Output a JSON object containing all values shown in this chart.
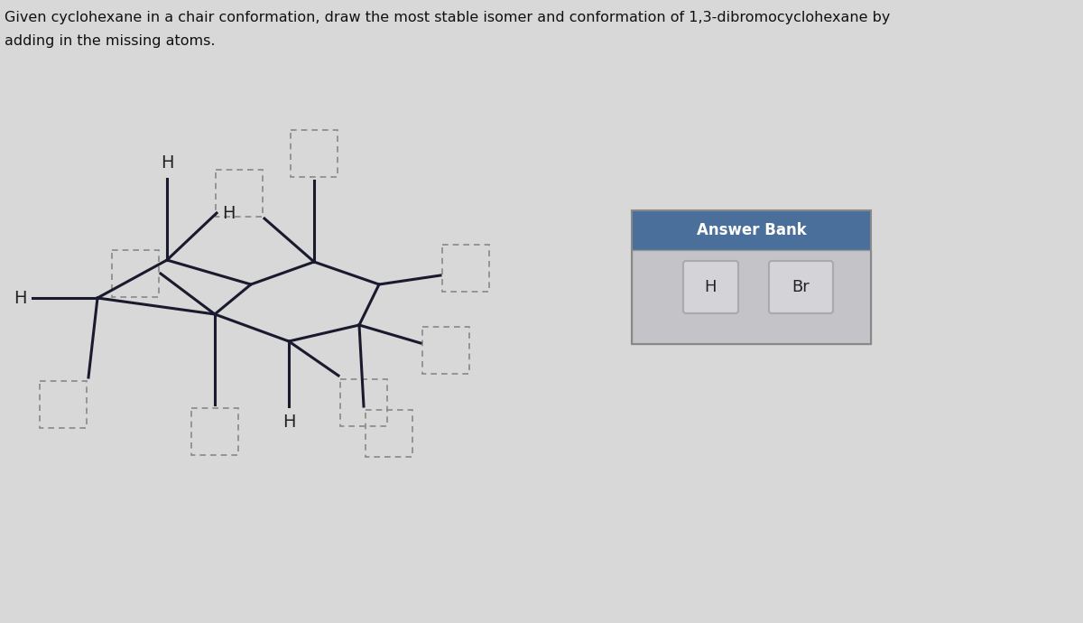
{
  "title_text": "Given cyclohexane in a chair conformation, draw the most stable isomer and conformation of 1,3-dibromocyclohexane by\nadding in the missing atoms.",
  "background_color": "#d8d8d8",
  "chair_color": "#1a1a2e",
  "answer_bank_header_color": "#4a6f9a",
  "answer_bank_bg": "#c8c8cc",
  "answer_bank_title": "Answer Bank",
  "answer_items": [
    "H",
    "Br"
  ]
}
